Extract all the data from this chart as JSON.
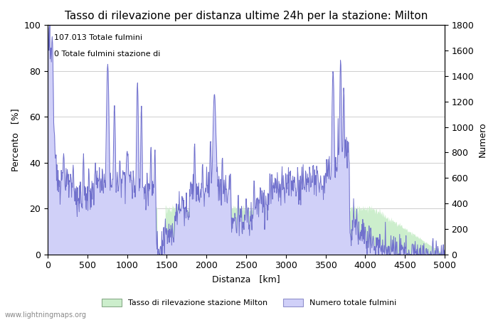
{
  "title": "Tasso di rilevazione per distanza ultime 24h per la stazione: Milton",
  "xlabel": "Distanza   [km]",
  "ylabel_left": "Percento   [%]",
  "ylabel_right": "Numero",
  "annotation_line1": "107.013 Totale fulmini",
  "annotation_line2": "0 Totale fulmini stazione di",
  "legend_green": "Tasso di rilevazione stazione Milton",
  "legend_blue": "Numero totale fulmini",
  "watermark": "www.lightningmaps.org",
  "xlim": [
    0,
    5000
  ],
  "ylim_left": [
    0,
    100
  ],
  "ylim_right": [
    0,
    1800
  ],
  "xticks": [
    0,
    500,
    1000,
    1500,
    2000,
    2500,
    3000,
    3500,
    4000,
    4500,
    5000
  ],
  "yticks_left": [
    0,
    20,
    40,
    60,
    80,
    100
  ],
  "yticks_right": [
    0,
    200,
    400,
    600,
    800,
    1000,
    1200,
    1400,
    1600,
    1800
  ],
  "color_green_fill": "#cceecc",
  "color_blue_fill": "#d0d0f8",
  "color_blue_line": "#7070cc",
  "background_color": "#ffffff",
  "title_fontsize": 11,
  "axis_label_fontsize": 9,
  "tick_fontsize": 9,
  "annotation_fontsize": 8,
  "grid_color": "#bbbbbb"
}
